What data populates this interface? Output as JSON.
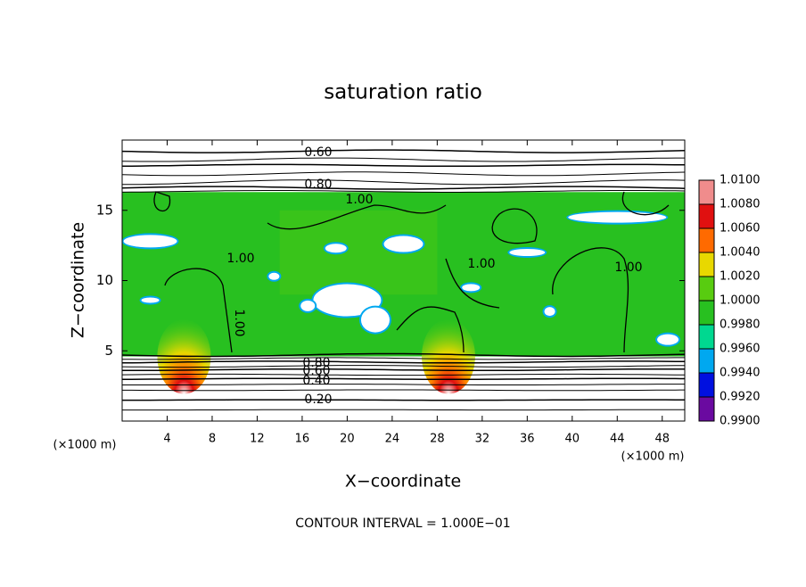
{
  "chart_data": {
    "type": "contour",
    "title": "saturation ratio",
    "x_label": "X−coordinate",
    "y_label": "Z−coordinate",
    "x_unit_label": "(×1000 m)",
    "x_unit_label_right": "(×1000 m)",
    "footer": "CONTOUR INTERVAL = 1.000E−01",
    "xlim": [
      0,
      50
    ],
    "ylim": [
      0,
      20
    ],
    "xticks": [
      4,
      8,
      12,
      16,
      20,
      24,
      28,
      32,
      36,
      40,
      44,
      48
    ],
    "yticks": [
      5,
      10,
      15
    ],
    "contour_labels": [
      "0.60",
      "0.80",
      "1.00",
      "1.00",
      "1.00",
      "1.00",
      "1.00",
      "0.80",
      "0.60",
      "0.40",
      "0.20"
    ],
    "colorbar": {
      "ticks": [
        {
          "value": 1.01,
          "label": "1.0100"
        },
        {
          "value": 1.008,
          "label": "1.0080"
        },
        {
          "value": 1.006,
          "label": "1.0060"
        },
        {
          "value": 1.004,
          "label": "1.0040"
        },
        {
          "value": 1.002,
          "label": "1.0020"
        },
        {
          "value": 1.0,
          "label": "1.0000"
        },
        {
          "value": 0.998,
          "label": "0.9980"
        },
        {
          "value": 0.996,
          "label": "0.9960"
        },
        {
          "value": 0.994,
          "label": "0.9940"
        },
        {
          "value": 0.992,
          "label": "0.9920"
        },
        {
          "value": 0.99,
          "label": "0.9900"
        }
      ],
      "colors": [
        "#f08c8c",
        "#e01010",
        "#ff6a00",
        "#e8d800",
        "#58cc10",
        "#28c020",
        "#00d890",
        "#00a8f0",
        "#0010e0",
        "#6a0aa0"
      ]
    }
  }
}
